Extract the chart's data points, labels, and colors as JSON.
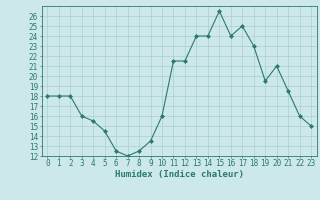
{
  "x": [
    0,
    1,
    2,
    3,
    4,
    5,
    6,
    7,
    8,
    9,
    10,
    11,
    12,
    13,
    14,
    15,
    16,
    17,
    18,
    19,
    20,
    21,
    22,
    23
  ],
  "y": [
    18,
    18,
    18,
    16,
    15.5,
    14.5,
    12.5,
    12,
    12.5,
    13.5,
    16,
    21.5,
    21.5,
    24,
    24,
    26.5,
    24,
    25,
    23,
    19.5,
    21,
    18.5,
    16,
    15
  ],
  "xlabel": "Humidex (Indice chaleur)",
  "ylim": [
    12,
    27
  ],
  "xlim": [
    -0.5,
    23.5
  ],
  "yticks": [
    12,
    13,
    14,
    15,
    16,
    17,
    18,
    19,
    20,
    21,
    22,
    23,
    24,
    25,
    26
  ],
  "xticks": [
    0,
    1,
    2,
    3,
    4,
    5,
    6,
    7,
    8,
    9,
    10,
    11,
    12,
    13,
    14,
    15,
    16,
    17,
    18,
    19,
    20,
    21,
    22,
    23
  ],
  "line_color": "#2d7a6b",
  "marker_color": "#2d7a6b",
  "bg_color": "#cce8e8",
  "grid_color": "#aacfcf",
  "tick_color": "#2d7a6b",
  "label_color": "#2d7a6b",
  "font_family": "monospace",
  "ytick_fontsize": 5.5,
  "xtick_fontsize": 5.5,
  "xlabel_fontsize": 6.5
}
